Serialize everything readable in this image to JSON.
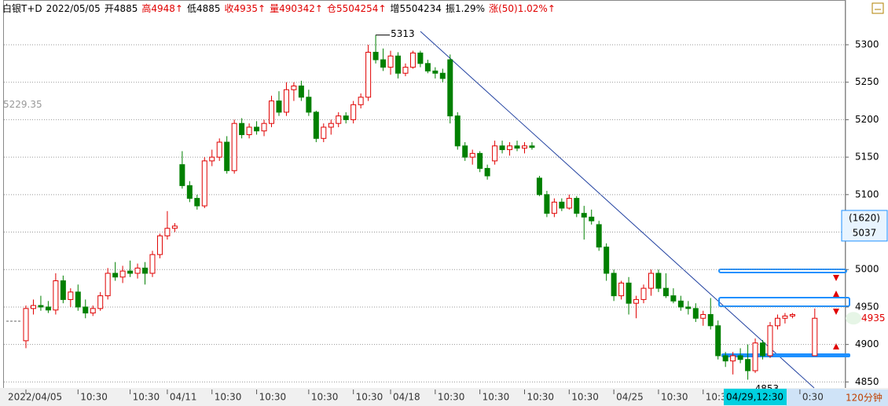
{
  "header": {
    "items": [
      {
        "text": "白银T+D",
        "color": "#000000"
      },
      {
        "text": "2022/05/05",
        "color": "#000000"
      },
      {
        "text": "开4885",
        "color": "#000000"
      },
      {
        "text": "高4948↑",
        "color": "#e00000"
      },
      {
        "text": "低4885",
        "color": "#000000"
      },
      {
        "text": "收4935↑",
        "color": "#e00000"
      },
      {
        "text": "量490342↑",
        "color": "#e00000"
      },
      {
        "text": "仓5504254↑",
        "color": "#e00000"
      },
      {
        "text": "增5504234",
        "color": "#000000"
      },
      {
        "text": "振1.29%",
        "color": "#000000"
      },
      {
        "text": "涨(50)1.02%↑",
        "color": "#e00000"
      }
    ]
  },
  "chart_data": {
    "type": "candlestick",
    "categories": [
      "2022/04/05",
      null,
      null,
      null,
      null,
      null,
      null,
      "10:30",
      null,
      null,
      null,
      null,
      null,
      null,
      "10:30",
      null,
      null,
      null,
      null,
      "04/11",
      null,
      null,
      null,
      null,
      null,
      "10:30",
      null,
      null,
      null,
      null,
      null,
      "10:30",
      null,
      null,
      null,
      null,
      null,
      null,
      "10:30",
      null,
      null,
      null,
      null,
      null,
      "10:30",
      null,
      null,
      null,
      null,
      "04/18",
      null,
      null,
      null,
      null,
      null,
      "10:30",
      null,
      null,
      null,
      null,
      null,
      "10:30",
      null,
      null,
      null,
      null,
      null,
      "10:30",
      null,
      null,
      null,
      null,
      null,
      "10:30",
      null,
      null,
      null,
      null,
      null,
      "04/25",
      null,
      null,
      null,
      null,
      null,
      "10:30",
      null,
      null,
      null,
      null,
      null,
      "10:30",
      null,
      null,
      null,
      null,
      null,
      null,
      null,
      null,
      null,
      null,
      null,
      null,
      "0:30",
      null,
      null
    ],
    "open": [
      4905,
      4948,
      4952,
      4950,
      4946,
      4985,
      4960,
      4970,
      4950,
      4942,
      4948,
      4965,
      4995,
      4990,
      4998,
      4995,
      5002,
      4995,
      5020,
      5045,
      5055,
      5140,
      5112,
      5095,
      5085,
      5145,
      5150,
      5170,
      5132,
      5195,
      5180,
      5190,
      5185,
      5195,
      5225,
      5210,
      5240,
      5245,
      5230,
      5210,
      5175,
      5190,
      5195,
      5205,
      5200,
      5220,
      5230,
      5290,
      5280,
      5270,
      5285,
      5262,
      5270,
      5289,
      5275,
      5265,
      5262,
      5280,
      5205,
      5165,
      5150,
      5155,
      5135,
      5145,
      5165,
      5160,
      5165,
      5162,
      5165,
      5122,
      5100,
      5075,
      5090,
      5082,
      5095,
      5075,
      5070,
      5060,
      5030,
      4995,
      4965,
      4982,
      4955,
      4960,
      4975,
      4995,
      4975,
      4965,
      4958,
      4950,
      4948,
      4935,
      4940,
      4925,
      4885,
      4878,
      4885,
      4880,
      4865,
      4902,
      4885,
      4925,
      4935,
      4938,
      null,
      null,
      4885
    ],
    "high": [
      4952,
      4960,
      4965,
      4958,
      4995,
      4992,
      4975,
      4980,
      4960,
      4952,
      4970,
      5002,
      5010,
      5005,
      5012,
      5008,
      5010,
      5025,
      5048,
      5078,
      5062,
      5158,
      5118,
      5100,
      5150,
      5160,
      5175,
      5178,
      5200,
      5202,
      5195,
      5198,
      5200,
      5232,
      5238,
      5250,
      5250,
      5252,
      5240,
      5212,
      5195,
      5200,
      5210,
      5210,
      5225,
      5235,
      5300,
      5313,
      5295,
      5292,
      5290,
      5275,
      5292,
      5292,
      5280,
      5270,
      5268,
      5287,
      5210,
      5170,
      5160,
      5158,
      5140,
      5172,
      5172,
      5170,
      5172,
      5170,
      5170,
      5125,
      5105,
      5095,
      5095,
      5100,
      5098,
      5085,
      5080,
      5065,
      5035,
      5000,
      4985,
      4990,
      4965,
      4980,
      5000,
      5000,
      4995,
      4975,
      4965,
      4958,
      4955,
      4945,
      4962,
      4932,
      4890,
      4890,
      4895,
      4900,
      4908,
      4906,
      4930,
      4940,
      4942,
      4942,
      null,
      null,
      4948
    ],
    "low": [
      4895,
      4940,
      4945,
      4942,
      4940,
      4955,
      4950,
      4945,
      4935,
      4938,
      4945,
      4960,
      4985,
      4982,
      4990,
      4988,
      4980,
      4990,
      5015,
      5040,
      5050,
      5108,
      5090,
      5080,
      5082,
      5138,
      5145,
      5128,
      5128,
      5175,
      5175,
      5180,
      5178,
      5190,
      5205,
      5205,
      5225,
      5225,
      5205,
      5170,
      5170,
      5180,
      5190,
      5195,
      5195,
      5215,
      5225,
      5275,
      5265,
      5260,
      5255,
      5258,
      5268,
      5270,
      5262,
      5255,
      5250,
      5195,
      5160,
      5145,
      5140,
      5130,
      5120,
      5140,
      5155,
      5152,
      5158,
      5155,
      5160,
      5098,
      5070,
      5070,
      5078,
      5080,
      5070,
      5040,
      5060,
      5025,
      4985,
      4958,
      4960,
      4940,
      4935,
      4955,
      4965,
      4970,
      4962,
      4955,
      4945,
      4940,
      4930,
      4925,
      4920,
      4880,
      4870,
      4860,
      4875,
      4853,
      4862,
      4880,
      4882,
      4920,
      4928,
      4935,
      null,
      null,
      4885
    ],
    "close": [
      4948,
      4952,
      4950,
      4946,
      4985,
      4960,
      4970,
      4950,
      4942,
      4948,
      4965,
      4995,
      4990,
      4998,
      4995,
      5002,
      4995,
      5020,
      5045,
      5055,
      5058,
      5112,
      5095,
      5085,
      5145,
      5150,
      5170,
      5132,
      5195,
      5180,
      5190,
      5185,
      5195,
      5225,
      5210,
      5240,
      5245,
      5230,
      5210,
      5175,
      5190,
      5195,
      5205,
      5200,
      5220,
      5230,
      5290,
      5280,
      5270,
      5285,
      5262,
      5270,
      5289,
      5275,
      5265,
      5262,
      5255,
      5205,
      5165,
      5150,
      5155,
      5135,
      5125,
      5165,
      5160,
      5165,
      5162,
      5165,
      5163,
      5100,
      5075,
      5090,
      5082,
      5095,
      5075,
      5070,
      5065,
      5030,
      4995,
      4965,
      4982,
      4955,
      4960,
      4975,
      4995,
      4975,
      4965,
      4958,
      4950,
      4948,
      4935,
      4940,
      4925,
      4885,
      4878,
      4885,
      4880,
      4865,
      4902,
      4885,
      4925,
      4935,
      4938,
      4940,
      null,
      null,
      4935
    ],
    "ylim": [
      4842,
      5344
    ],
    "yticks": [
      4850,
      4900,
      4950,
      5000,
      5050,
      5100,
      5150,
      5200,
      5250,
      5300
    ],
    "grid": true,
    "up_color": "#e00000",
    "down_color": "#008000",
    "high_label": 5313,
    "low_label": 4853,
    "ref_price": 5229.35,
    "side_box": {
      "count": "(1620)",
      "price": 5037
    },
    "last_price": 4935,
    "cursor_time": "04/29,12:30",
    "period": "120分钟"
  }
}
